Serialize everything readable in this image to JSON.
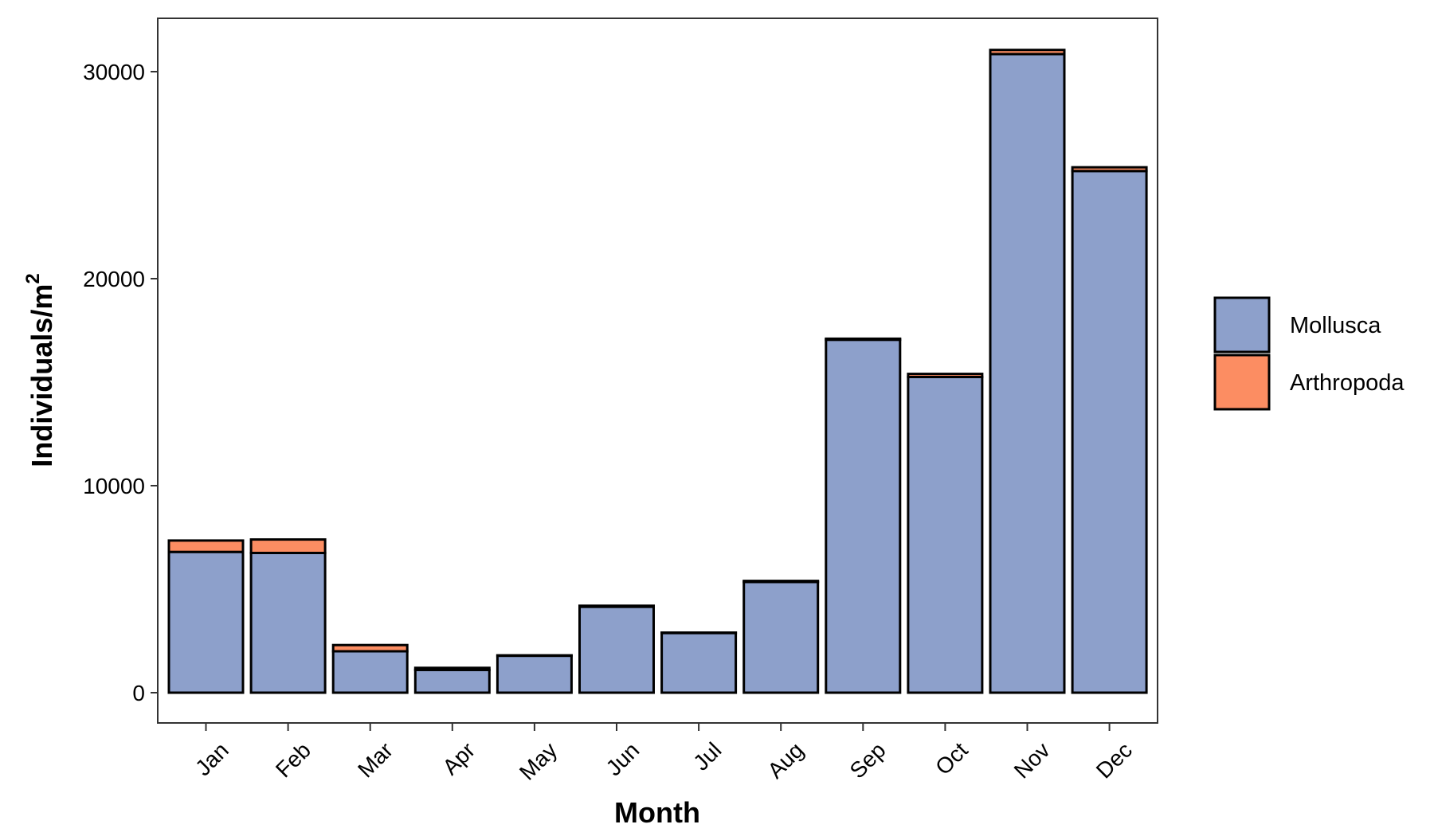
{
  "chart_data": {
    "type": "bar",
    "stacked": true,
    "categories": [
      "Jan",
      "Feb",
      "Mar",
      "Apr",
      "May",
      "Jun",
      "Jul",
      "Aug",
      "Sep",
      "Oct",
      "Nov",
      "Dec"
    ],
    "series": [
      {
        "name": "Mollusca",
        "color": "#8DA0CB",
        "values": [
          6800,
          6750,
          2000,
          1100,
          1800,
          4150,
          2900,
          5350,
          17050,
          15250,
          30850,
          25200
        ]
      },
      {
        "name": "Arthropoda",
        "color": "#FC8D62",
        "values": [
          550,
          650,
          300,
          100,
          0,
          50,
          0,
          50,
          50,
          150,
          200,
          180
        ]
      }
    ],
    "xlabel": "Month",
    "ylabel": "Individuals/m",
    "ylabel_superscript": "2",
    "yticks": [
      0,
      10000,
      20000,
      30000
    ],
    "ylim": [
      -1500,
      32600
    ],
    "grid": false,
    "legend_position": "right"
  }
}
